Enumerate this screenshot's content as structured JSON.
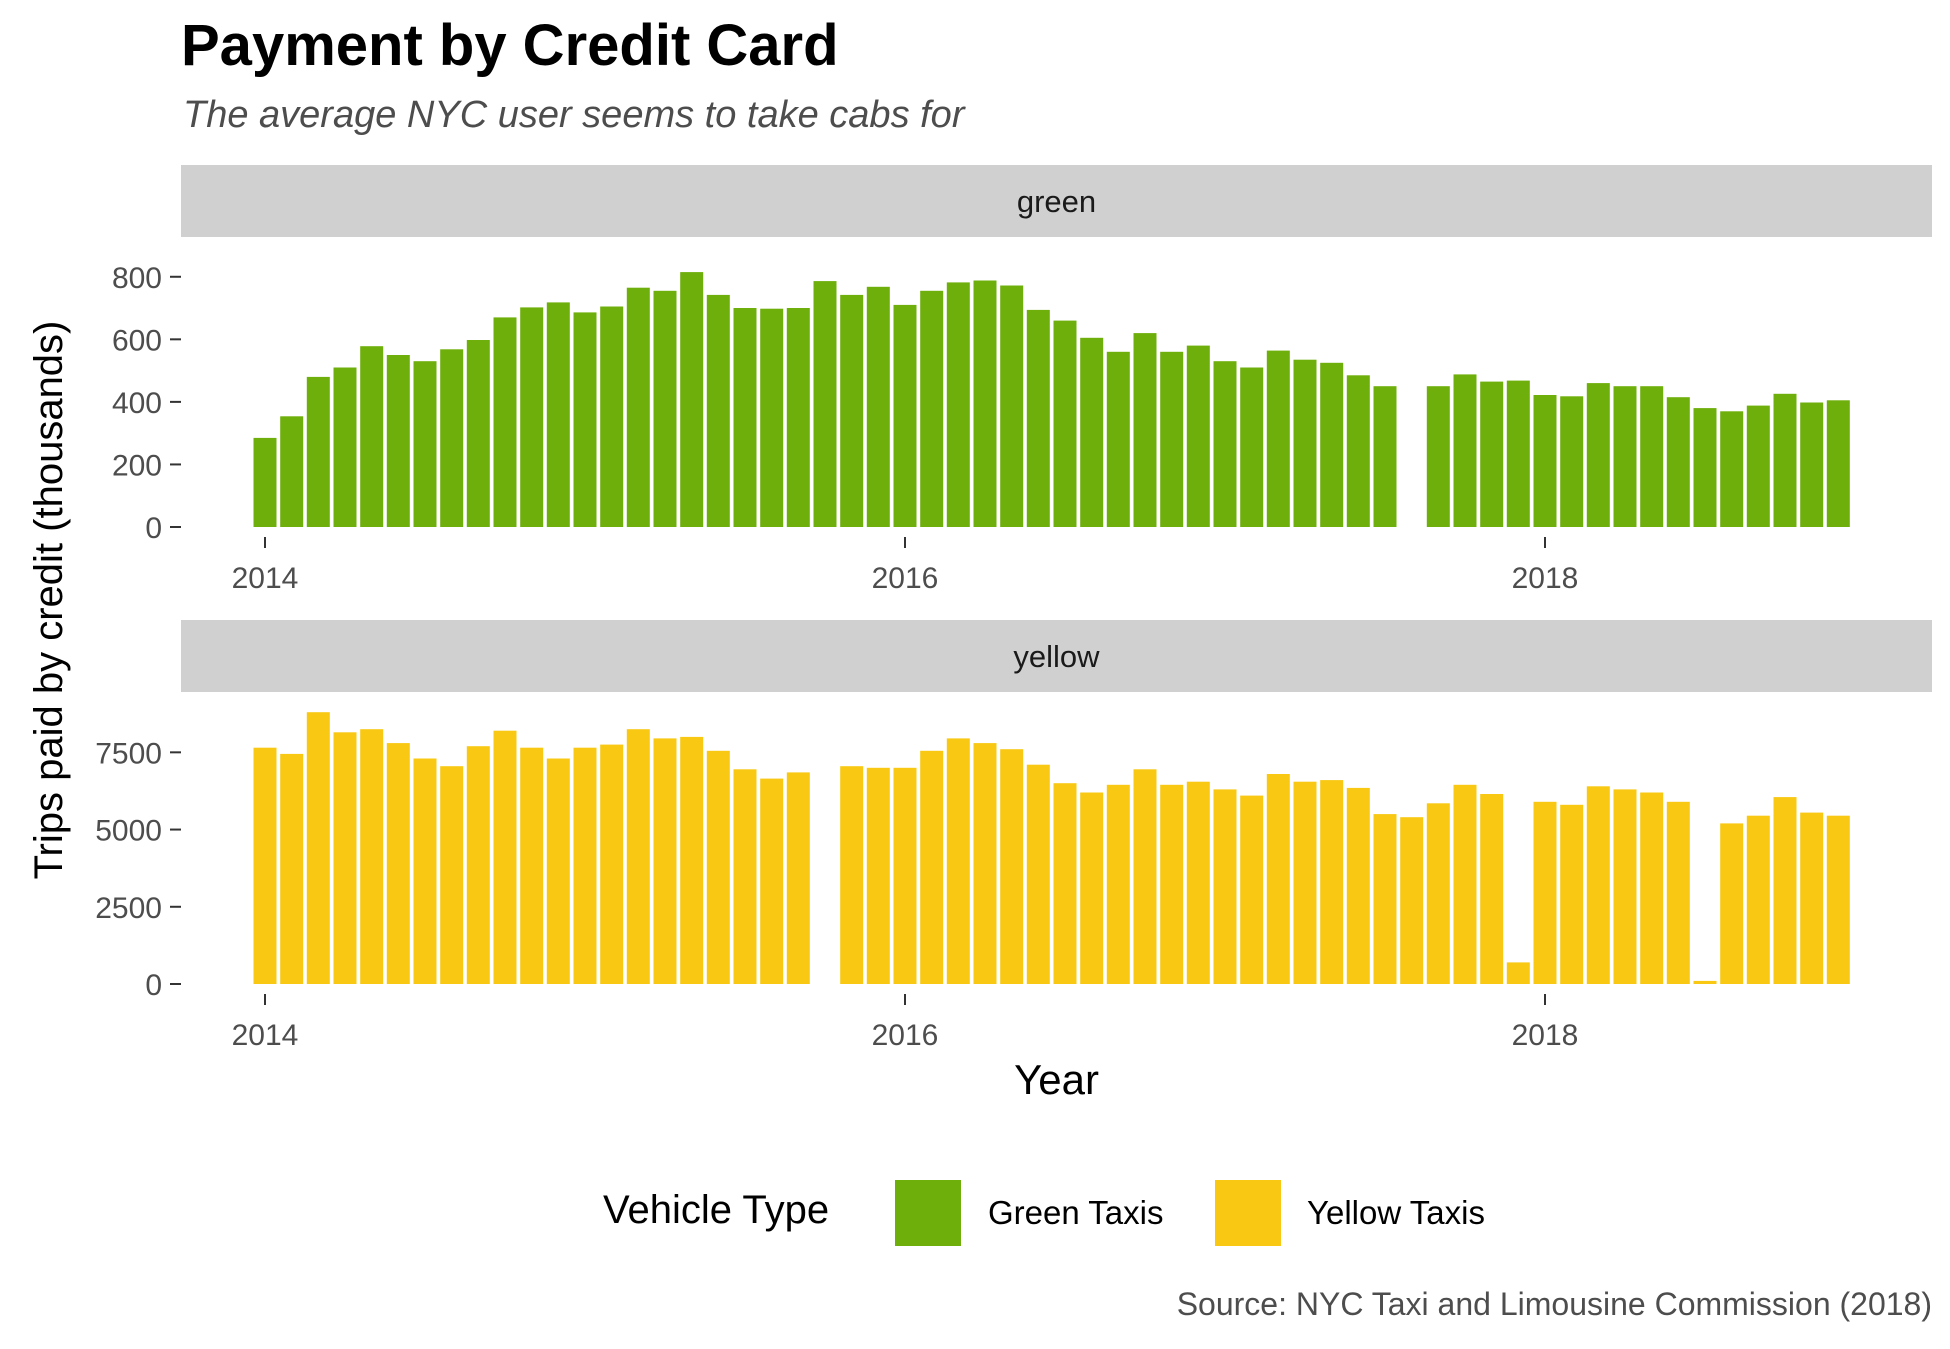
{
  "title": "Payment by Credit Card",
  "subtitle": "The average NYC user seems to take cabs for",
  "caption": "Source: NYC Taxi and Limousine Commission (2018)",
  "legend": {
    "title": "Vehicle Type",
    "items": [
      {
        "label": "Green Taxis",
        "color": "#6eaf0b"
      },
      {
        "label": "Yellow Taxis",
        "color": "#f8c813"
      }
    ]
  },
  "chart_data": {
    "type": "bar",
    "xlabel": "Year",
    "ylabel": "Trips paid by credit (thousands)",
    "x_ticks": [
      "2014",
      "2016",
      "2018"
    ],
    "grid": false,
    "legend_position": "bottom",
    "panels": [
      {
        "name": "green",
        "color": "#6eaf0b",
        "ylim": [
          0,
          860
        ],
        "y_ticks": [
          0,
          200,
          400,
          600,
          800
        ],
        "months": [
          "2014-01",
          "2014-02",
          "2014-03",
          "2014-04",
          "2014-05",
          "2014-06",
          "2014-07",
          "2014-08",
          "2014-09",
          "2014-10",
          "2014-11",
          "2014-12",
          "2015-01",
          "2015-02",
          "2015-03",
          "2015-04",
          "2015-05",
          "2015-06",
          "2015-07",
          "2015-08",
          "2015-09",
          "2015-10",
          "2015-11",
          "2015-12",
          "2016-01",
          "2016-02",
          "2016-03",
          "2016-04",
          "2016-05",
          "2016-06",
          "2016-07",
          "2016-08",
          "2016-09",
          "2016-10",
          "2016-11",
          "2016-12",
          "2017-01",
          "2017-02",
          "2017-03",
          "2017-04",
          "2017-05",
          "2017-06",
          "2017-07",
          "2017-08",
          "2017-09",
          "2017-10",
          "2017-11",
          "2017-12",
          "2018-01",
          "2018-02",
          "2018-03",
          "2018-04",
          "2018-05",
          "2018-06",
          "2018-07",
          "2018-08",
          "2018-09",
          "2018-10",
          "2018-11",
          "2018-12"
        ],
        "values": [
          285,
          354,
          480,
          510,
          578,
          550,
          530,
          568,
          598,
          670,
          702,
          718,
          686,
          705,
          765,
          755,
          815,
          742,
          700,
          698,
          700,
          786,
          742,
          768,
          710,
          755,
          782,
          788,
          772,
          694,
          660,
          605,
          560,
          620,
          560,
          580,
          530,
          510,
          564,
          535,
          525,
          485,
          450,
          null,
          450,
          488,
          465,
          468,
          422,
          418,
          460,
          450,
          450,
          415,
          380,
          370,
          388,
          426,
          398,
          405
        ]
      },
      {
        "name": "yellow",
        "color": "#f8c813",
        "ylim": [
          0,
          9000
        ],
        "y_ticks": [
          0,
          2500,
          5000,
          7500
        ],
        "months": [
          "2014-01",
          "2014-02",
          "2014-03",
          "2014-04",
          "2014-05",
          "2014-06",
          "2014-07",
          "2014-08",
          "2014-09",
          "2014-10",
          "2014-11",
          "2014-12",
          "2015-01",
          "2015-02",
          "2015-03",
          "2015-04",
          "2015-05",
          "2015-06",
          "2015-07",
          "2015-08",
          "2015-09",
          "2015-10",
          "2015-11",
          "2015-12",
          "2016-01",
          "2016-02",
          "2016-03",
          "2016-04",
          "2016-05",
          "2016-06",
          "2016-07",
          "2016-08",
          "2016-09",
          "2016-10",
          "2016-11",
          "2016-12",
          "2017-01",
          "2017-02",
          "2017-03",
          "2017-04",
          "2017-05",
          "2017-06",
          "2017-07",
          "2017-08",
          "2017-09",
          "2017-10",
          "2017-11",
          "2017-12",
          "2018-01",
          "2018-02",
          "2018-03",
          "2018-04",
          "2018-05",
          "2018-06",
          "2018-07",
          "2018-08",
          "2018-09",
          "2018-10",
          "2018-11",
          "2018-12"
        ],
        "values": [
          7650,
          7450,
          8800,
          8150,
          8250,
          7800,
          7300,
          7050,
          7700,
          8200,
          7650,
          7300,
          7650,
          7750,
          8250,
          7950,
          8000,
          7550,
          6950,
          6650,
          6850,
          null,
          7050,
          7000,
          7000,
          7550,
          7950,
          7800,
          7600,
          7100,
          6500,
          6200,
          6450,
          6950,
          6450,
          6550,
          6300,
          6100,
          6800,
          6550,
          6600,
          6350,
          5500,
          5400,
          5850,
          6450,
          6150,
          700,
          5900,
          5800,
          6400,
          6300,
          6200,
          5900,
          100,
          5200,
          5450,
          6050,
          5550,
          5450
        ]
      }
    ]
  }
}
